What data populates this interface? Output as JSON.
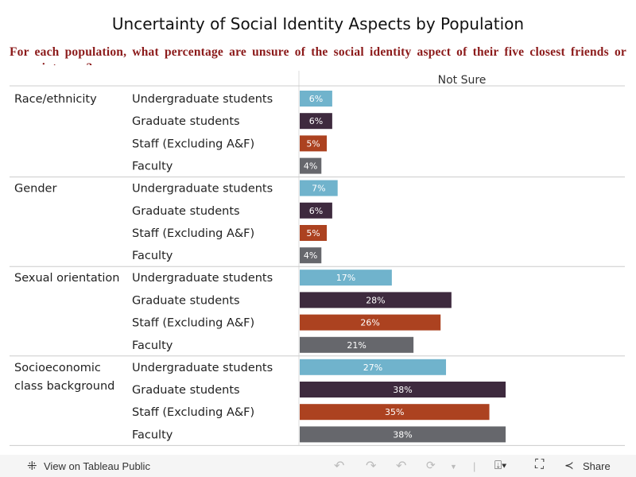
{
  "chart_data": {
    "type": "bar",
    "orientation": "horizontal",
    "title": "Uncertainty of Social Identity Aspects by Population",
    "subtitle": "For each population, what percentage are unsure of the social identity aspect of their five closest friends or acquaintances?",
    "column_header": "Not Sure",
    "groups": [
      "Race/ethnicity",
      "Gender",
      "Sexual orientation",
      "Socioeconomic class background"
    ],
    "categories": [
      "Undergraduate students",
      "Graduate students",
      "Staff (Excluding A&F)",
      "Faculty"
    ],
    "values": [
      [
        6,
        6,
        5,
        4
      ],
      [
        7,
        6,
        5,
        4
      ],
      [
        17,
        28,
        26,
        21
      ],
      [
        27,
        38,
        35,
        38
      ]
    ],
    "value_format": "percent",
    "xlim": [
      0,
      60
    ],
    "colors": {
      "Undergraduate students": "#70b3cc",
      "Graduate students": "#3e2a3e",
      "Staff (Excluding A&F)": "#ac4220",
      "Faculty": "#66676c"
    },
    "grid": false
  },
  "toolbar": {
    "view_label": "View on Tableau Public",
    "share_label": "Share"
  }
}
